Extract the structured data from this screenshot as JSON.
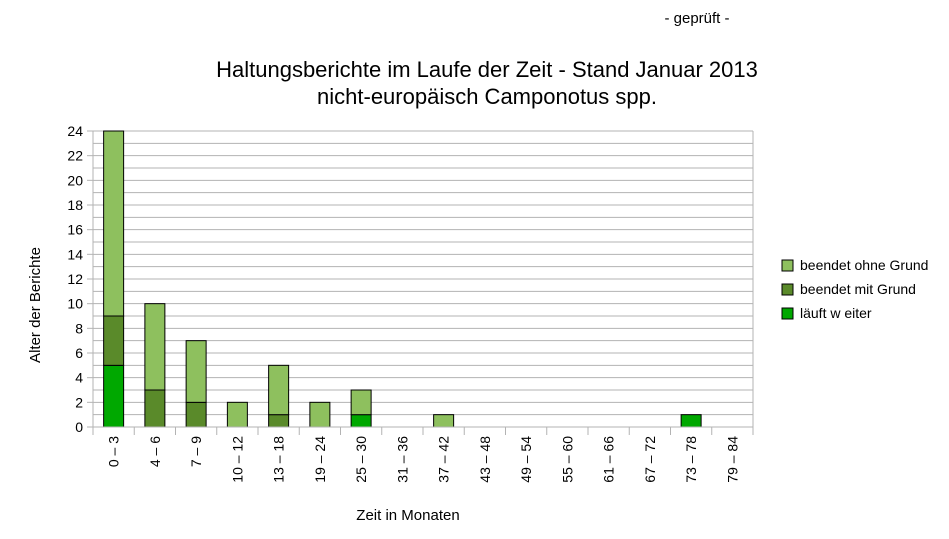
{
  "chart_data": {
    "type": "bar",
    "stacked": true,
    "stamp": "- geprüft -",
    "title": "Haltungsberichte im Laufe der Zeit - Stand Januar 2013",
    "subtitle": "nicht-europäisch Camponotus spp.",
    "xlabel": "Zeit in Monaten",
    "ylabel": "Alter der Berichte",
    "ylim": [
      0,
      24
    ],
    "yticks": [
      0,
      2,
      4,
      6,
      8,
      10,
      12,
      14,
      16,
      18,
      20,
      22,
      24
    ],
    "ygrid_step": 1,
    "grid": true,
    "legend_position": "right",
    "categories": [
      "0 – 3",
      "4 – 6",
      "7 – 9",
      "10 – 12",
      "13 – 18",
      "19 – 24",
      "25 – 30",
      "31 – 36",
      "37 – 42",
      "43 – 48",
      "49 – 54",
      "55 – 60",
      "61 – 66",
      "67 – 72",
      "73 – 78",
      "79 – 84"
    ],
    "series": [
      {
        "name": "läuft w eiter",
        "color": "#00a800",
        "values": [
          5,
          0,
          0,
          0,
          0,
          0,
          1,
          0,
          0,
          0,
          0,
          0,
          0,
          0,
          1,
          0
        ]
      },
      {
        "name": "beendet mit Grund",
        "color": "#5a8a2a",
        "values": [
          4,
          3,
          2,
          0,
          1,
          0,
          0,
          0,
          0,
          0,
          0,
          0,
          0,
          0,
          0,
          0
        ]
      },
      {
        "name": "beendet ohne Grund",
        "color": "#8ec05e",
        "values": [
          15,
          7,
          5,
          2,
          4,
          2,
          2,
          0,
          1,
          0,
          0,
          0,
          0,
          0,
          0,
          0
        ]
      }
    ],
    "legend_order": [
      "beendet ohne Grund",
      "beendet mit Grund",
      "läuft w eiter"
    ]
  }
}
